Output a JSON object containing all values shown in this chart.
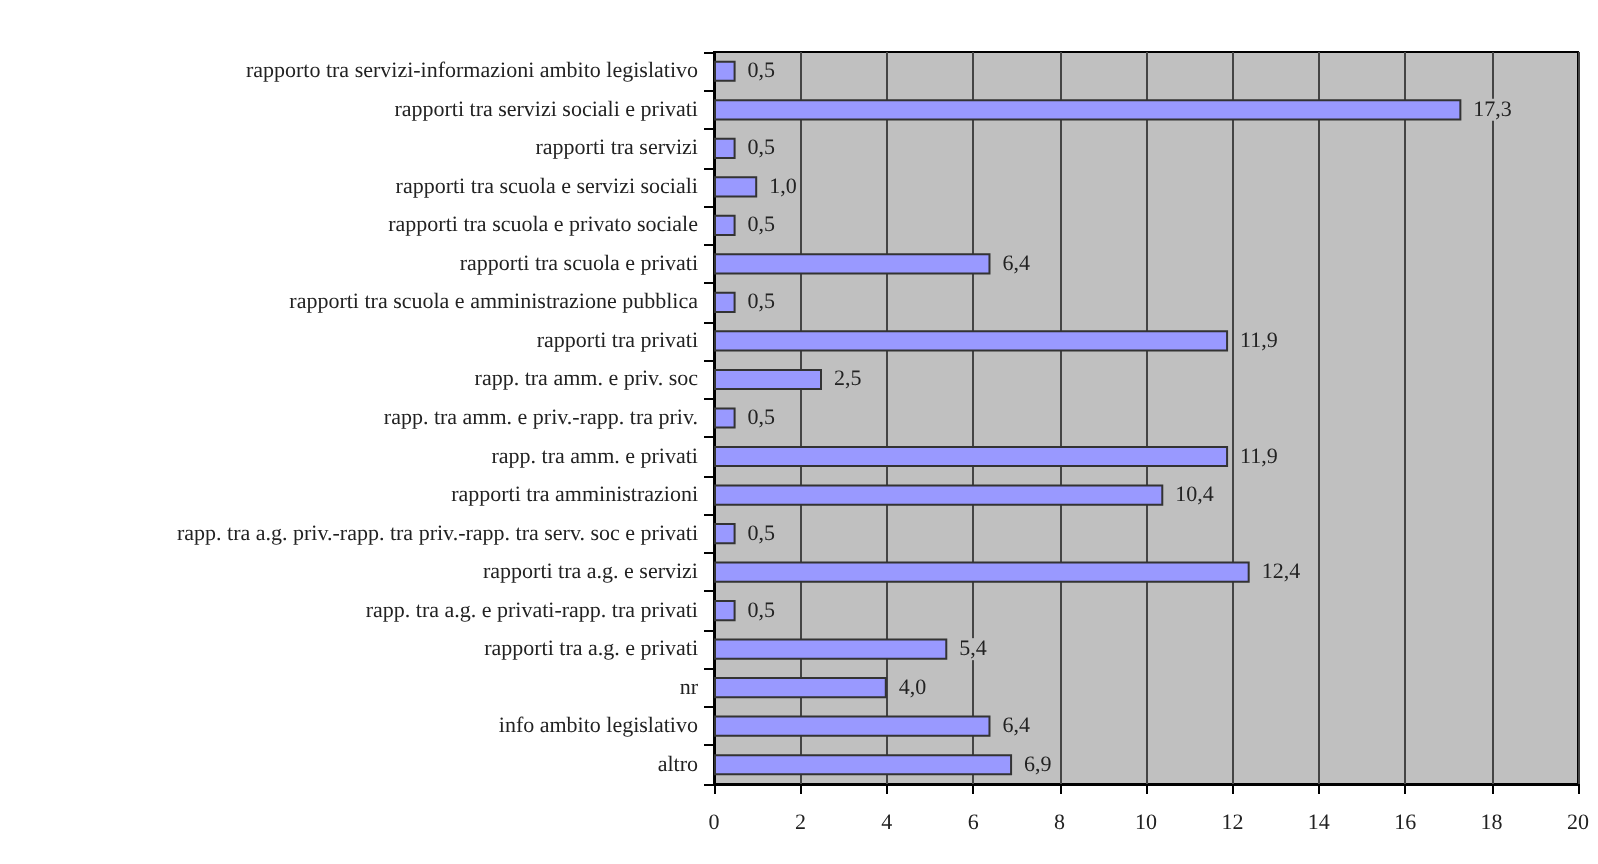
{
  "chart_data": {
    "type": "bar",
    "orientation": "horizontal",
    "categories": [
      "rapporto tra servizi-informazioni ambito legislativo",
      "rapporti tra servizi sociali e privati",
      "rapporti tra servizi",
      "rapporti tra scuola e servizi sociali",
      "rapporti tra scuola e privato sociale",
      "rapporti tra scuola e privati",
      "rapporti tra scuola e amministrazione pubblica",
      "rapporti tra privati",
      "rapp. tra amm. e priv. soc",
      "rapp. tra amm. e priv.-rapp. tra priv.",
      "rapp. tra amm. e privati",
      "rapporti tra amministrazioni",
      "rapp. tra a.g. priv.-rapp. tra priv.-rapp. tra serv. soc e privati",
      "rapporti tra a.g. e servizi",
      "rapp. tra a.g. e privati-rapp. tra privati",
      "rapporti tra a.g. e privati",
      "nr",
      "info ambito legislativo",
      "altro"
    ],
    "values": [
      0.5,
      17.3,
      0.5,
      1.0,
      0.5,
      6.4,
      0.5,
      11.9,
      2.5,
      0.5,
      11.9,
      10.4,
      0.5,
      12.4,
      0.5,
      5.4,
      4.0,
      6.4,
      6.9
    ],
    "value_labels": [
      "0,5",
      "17,3",
      "0,5",
      "1,0",
      "0,5",
      "6,4",
      "0,5",
      "11,9",
      "2,5",
      "0,5",
      "11,9",
      "10,4",
      "0,5",
      "12,4",
      "0,5",
      "5,4",
      "4,0",
      "6,4",
      "6,9"
    ],
    "color": "#9999ff",
    "xlim": [
      0,
      20
    ],
    "xticks": [
      0,
      2,
      4,
      6,
      8,
      10,
      12,
      14,
      16,
      18,
      20
    ],
    "grid": "x"
  }
}
